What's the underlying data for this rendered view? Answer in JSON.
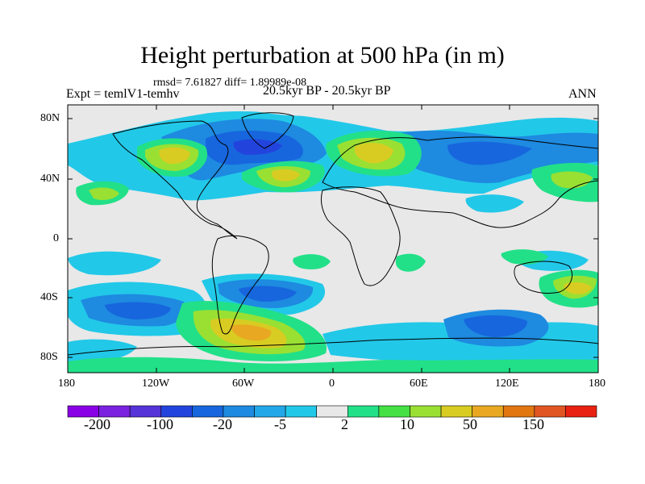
{
  "title": "Height perturbation at 500 hPa (in m)",
  "stats_line": "rmsd= 7.61827 diff= 1.89989e-08",
  "period": "20.5kyr BP - 20.5kyr BP",
  "experiment": "Expt = temlV1-temhv",
  "season": "ANN",
  "axes": {
    "lat_labels": [
      "80N",
      "40N",
      "0",
      "40S",
      "80S"
    ],
    "lon_labels": [
      "180",
      "120W",
      "60W",
      "0",
      "60E",
      "120E",
      "180"
    ]
  },
  "colorbar": {
    "colors": [
      "#8a00e6",
      "#7a22e0",
      "#5533d8",
      "#2244dd",
      "#1766dd",
      "#1e8ae0",
      "#22a8e8",
      "#22c8e8",
      "#e8e8e8",
      "#22e088",
      "#44e044",
      "#99e033",
      "#d8cc22",
      "#e8a822",
      "#e07711",
      "#e05522",
      "#e82211"
    ],
    "labels": [
      "-200",
      "-100",
      "-20",
      "-5",
      "2",
      "10",
      "50",
      "150"
    ]
  },
  "palette": {
    "neutral": "#e8e8e8",
    "neg_light": "#22c8e8",
    "neg_mid": "#1e8ae0",
    "neg_strong": "#1766dd",
    "neg_deep": "#2244dd",
    "pos_light": "#22e088",
    "pos_mid": "#99e033",
    "pos_strong": "#d8cc22",
    "pos_deep": "#e8a822"
  }
}
